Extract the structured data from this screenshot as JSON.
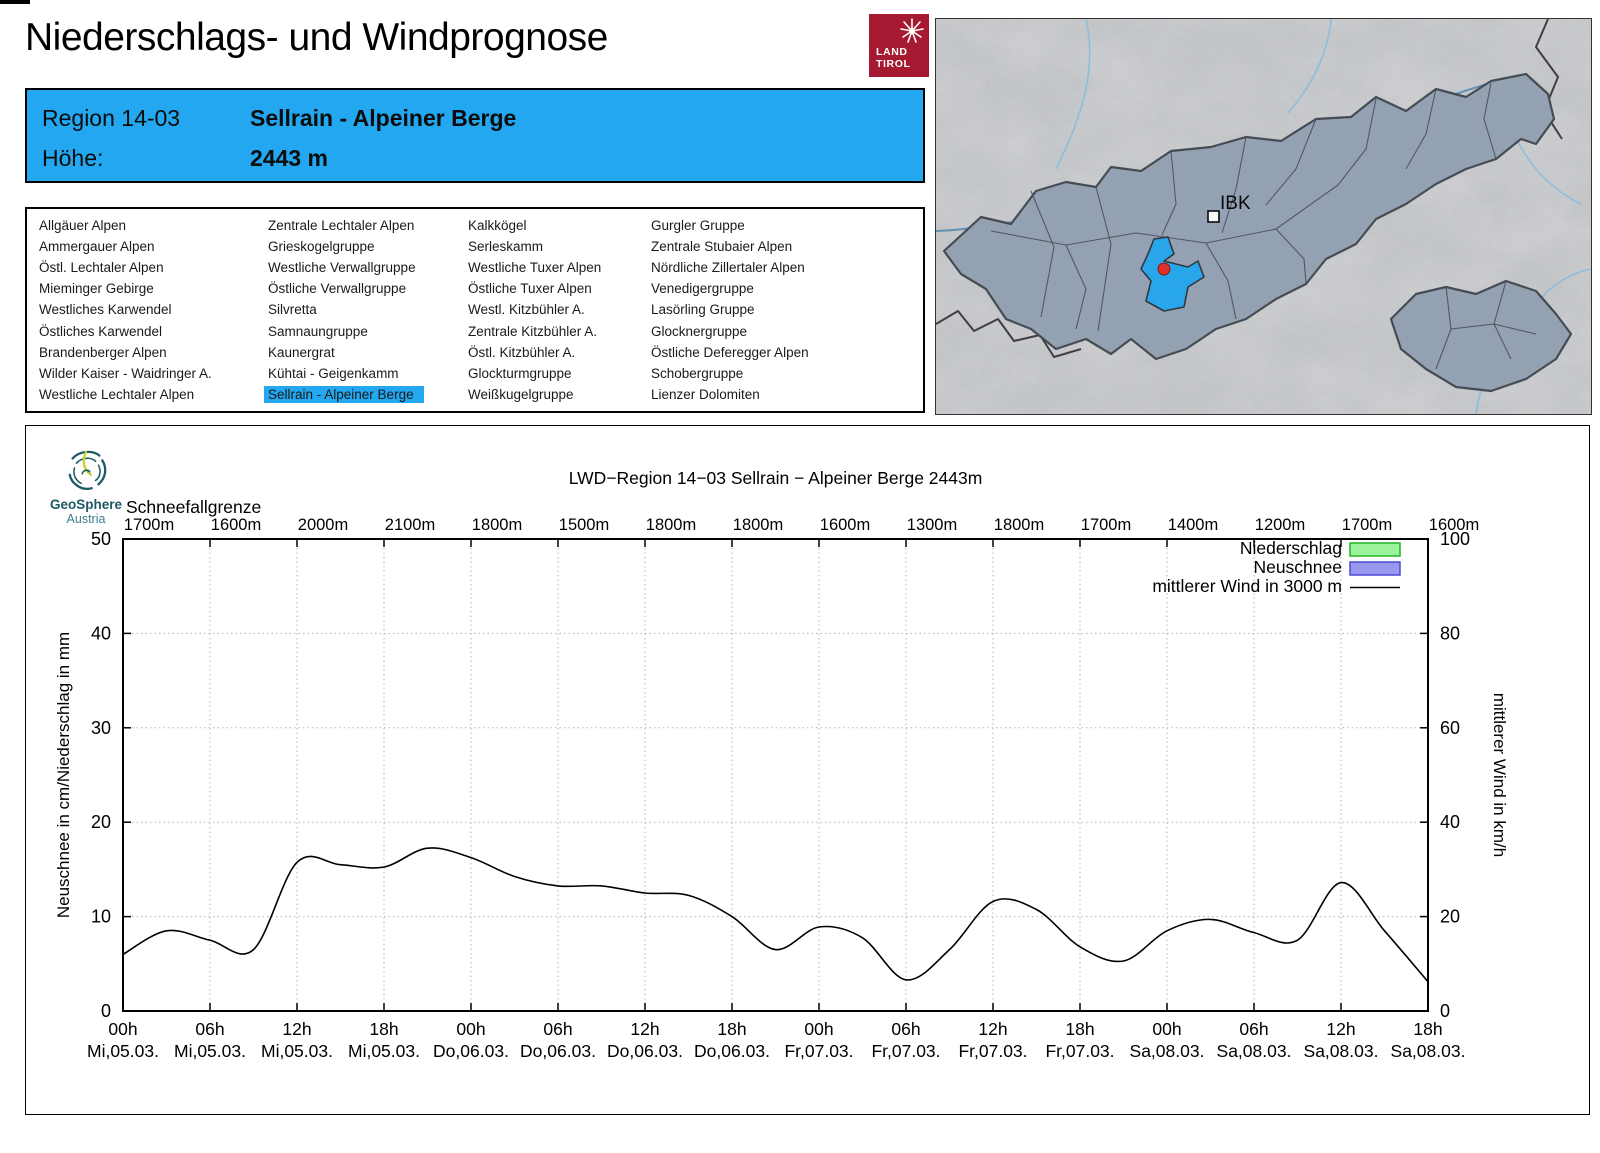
{
  "page": {
    "title": "Niederschlags- und Windprognose"
  },
  "logo_land_tirol": {
    "line1": "LAND",
    "line2": "TIROL"
  },
  "header_box": {
    "region_label": "Region 14-03",
    "region_name": "Sellrain - Alpeiner Berge",
    "altitude_label": "Höhe:",
    "altitude_value": "2443 m"
  },
  "region_list": {
    "selected": "Sellrain - Alpeiner Berge",
    "columns": [
      [
        "Allgäuer Alpen",
        "Ammergauer Alpen",
        "Östl. Lechtaler Alpen",
        "Mieminger Gebirge",
        "Westliches Karwendel",
        "Östliches Karwendel",
        "Brandenberger Alpen",
        "Wilder Kaiser - Waidringer A.",
        "Westliche Lechtaler Alpen"
      ],
      [
        "Zentrale Lechtaler Alpen",
        "Grieskogelgruppe",
        "Westliche Verwallgruppe",
        "Östliche Verwallgruppe",
        "Silvretta",
        "Samnaungruppe",
        "Kaunergrat",
        "Kühtai - Geigenkamm",
        "Sellrain - Alpeiner Berge"
      ],
      [
        "Kalkkögel",
        "Serleskamm",
        "Westliche Tuxer Alpen",
        "Östliche Tuxer Alpen",
        "Westl. Kitzbühler A.",
        "Zentrale Kitzbühler A.",
        "Östl. Kitzbühler A.",
        "Glockturmgruppe",
        "Weißkugelgruppe"
      ],
      [
        "Gurgler Gruppe",
        "Zentrale Stubaier Alpen",
        "Nördliche Zillertaler Alpen",
        "Venedigergruppe",
        "Lasörling Gruppe",
        "Glocknergruppe",
        "Östliche Deferegger Alpen",
        "Schobergruppe",
        "Lienzer Dolomiten"
      ]
    ]
  },
  "map": {
    "city_label": "IBK"
  },
  "geosphere": {
    "name": "GeoSphere",
    "country": "Austria"
  },
  "chart_data": {
    "type": "line",
    "title": "LWD−Region 14−03 Sellrain − Alpeiner Berge 2443m",
    "snowline_label": "Schneefallgrenze",
    "snowline_values": [
      "1700m",
      "1600m",
      "2000m",
      "2100m",
      "1800m",
      "1500m",
      "1800m",
      "1800m",
      "1600m",
      "1300m",
      "1800m",
      "1700m",
      "1400m",
      "1200m",
      "1700m",
      "1600m"
    ],
    "x_tick_hours": [
      "00h",
      "06h",
      "12h",
      "18h",
      "00h",
      "06h",
      "12h",
      "18h",
      "00h",
      "06h",
      "12h",
      "18h",
      "00h",
      "06h",
      "12h",
      "18h"
    ],
    "x_tick_days": [
      "Mi,05.03.",
      "Mi,05.03.",
      "Mi,05.03.",
      "Mi,05.03.",
      "Do,06.03.",
      "Do,06.03.",
      "Do,06.03.",
      "Do,06.03.",
      "Fr,07.03.",
      "Fr,07.03.",
      "Fr,07.03.",
      "Fr,07.03.",
      "Sa,08.03.",
      "Sa,08.03.",
      "Sa,08.03.",
      "Sa,08.03."
    ],
    "y_left": {
      "label": "Neuschnee in cm/Niederschlag in mm",
      "min": 0,
      "max": 50,
      "step": 10
    },
    "y_right": {
      "label": "mittlerer Wind in km/h",
      "min": 0,
      "max": 100,
      "step": 20
    },
    "grid": "dotted, vertical every 6h, horizontal every 10 units",
    "legend_position": "top-right inside plot",
    "legend": [
      {
        "label": "Niederschlag",
        "type": "box",
        "fill": "#9af29a",
        "stroke": "#23b523"
      },
      {
        "label": "Neuschnee",
        "type": "box",
        "fill": "#9898ee",
        "stroke": "#4b4bd0"
      },
      {
        "label": "mittlerer Wind in 3000 m",
        "type": "line",
        "color": "#000000"
      }
    ],
    "series": [
      {
        "name": "mittlerer Wind in 3000 m",
        "unit": "km/h",
        "axis": "right",
        "x_hours": [
          0,
          3,
          6,
          9,
          12,
          15,
          18,
          21,
          24,
          27,
          30,
          33,
          36,
          39,
          42,
          45,
          48,
          51,
          54,
          57,
          60,
          63,
          66,
          69,
          72,
          75,
          78,
          81,
          84,
          87,
          90
        ],
        "values": [
          12,
          17,
          15,
          13,
          31.5,
          31,
          30.5,
          34.5,
          32.5,
          28.5,
          26.5,
          26.5,
          25,
          24.5,
          20,
          13,
          17.8,
          15.5,
          6.6,
          13,
          23.2,
          21.5,
          13.6,
          10.6,
          17,
          19.4,
          16.6,
          15,
          27.2,
          17,
          6.2
        ]
      }
    ]
  },
  "colors": {
    "accent_blue": "#22a7f0",
    "land_tirol_red": "#a51931",
    "map_region_fill": "#94a2b4",
    "map_region_stroke": "#41474f",
    "selected_dot_red": "#e02a22",
    "geosphere_teal": "#1d5a66",
    "geosphere_lime": "#c3d32e"
  }
}
